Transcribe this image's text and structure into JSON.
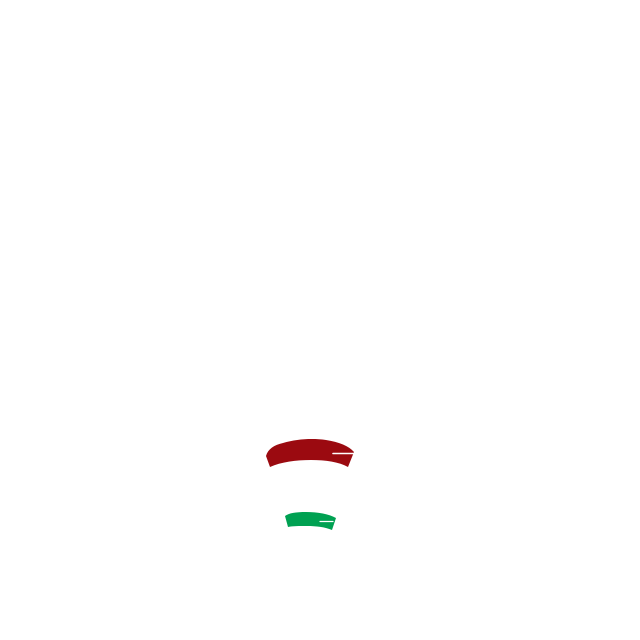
{
  "background_color": "#ffffff",
  "arcs": {
    "upper": {
      "fill_color": "#9b0a10",
      "highlight_color": "#ffffff"
    },
    "lower": {
      "fill_color": "#00a152",
      "highlight_color": "#ffffff"
    }
  }
}
